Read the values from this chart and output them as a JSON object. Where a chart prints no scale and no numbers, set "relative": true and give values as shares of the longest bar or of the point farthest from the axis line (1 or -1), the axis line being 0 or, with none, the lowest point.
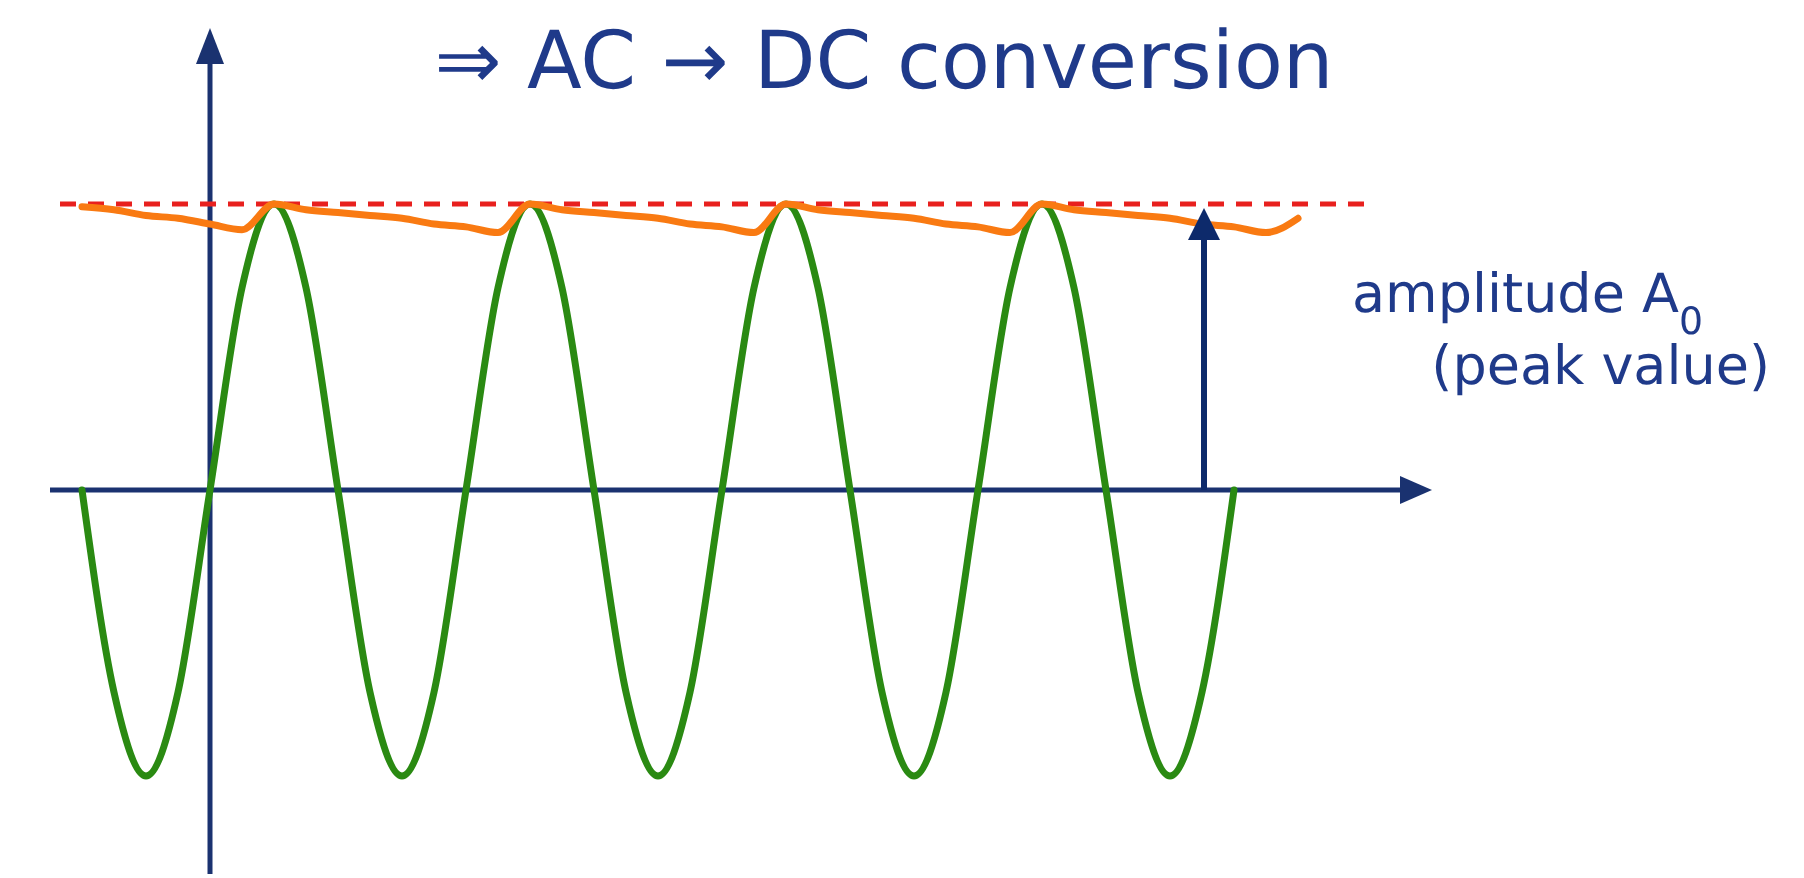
{
  "chart_data": {
    "type": "line",
    "title": "⇒ AC → DC conversion",
    "relative": true,
    "categories": [
      null,
      null,
      null,
      null,
      null,
      null,
      null,
      null,
      null,
      null,
      null,
      null,
      null,
      null,
      null,
      null,
      null,
      null,
      null,
      null,
      null,
      null,
      null,
      null,
      null,
      null,
      null,
      null,
      null,
      null,
      null,
      null,
      null,
      null,
      null,
      null,
      null,
      null,
      null
    ],
    "series": [
      {
        "color": "#2a8a12",
        "values": [
          0,
          -0.707,
          -1,
          -0.707,
          0,
          0.707,
          1,
          0.707,
          0,
          -0.707,
          -1,
          -0.707,
          0,
          0.707,
          1,
          0.707,
          0,
          -0.707,
          -1,
          -0.707,
          0,
          0.707,
          1,
          0.707,
          0,
          -0.707,
          -1,
          -0.707,
          0,
          0.707,
          1,
          0.707,
          0,
          -0.707,
          -1,
          -0.707,
          0,
          null,
          null
        ]
      },
      {
        "color": "#f97a12",
        "values": [
          0.99,
          0.98,
          0.96,
          0.95,
          0.93,
          0.91,
          1,
          0.98,
          0.97,
          0.96,
          0.95,
          0.93,
          0.92,
          0.9,
          1,
          0.98,
          0.97,
          0.96,
          0.95,
          0.93,
          0.92,
          0.9,
          1,
          0.98,
          0.97,
          0.96,
          0.95,
          0.93,
          0.92,
          0.9,
          1,
          0.98,
          0.97,
          0.96,
          0.95,
          0.93,
          0.92,
          0.9,
          0.95
        ]
      }
    ],
    "ref_lines": [
      {
        "axis": "y",
        "value": 1,
        "color": "#e8201e",
        "line_style": "dashed"
      },
      {
        "axis": "y",
        "value": 0,
        "color": "#1a3270",
        "line_style": "solid"
      }
    ],
    "annotations": [
      "amplitude A$_{0}$",
      "(peak value)"
    ]
  }
}
